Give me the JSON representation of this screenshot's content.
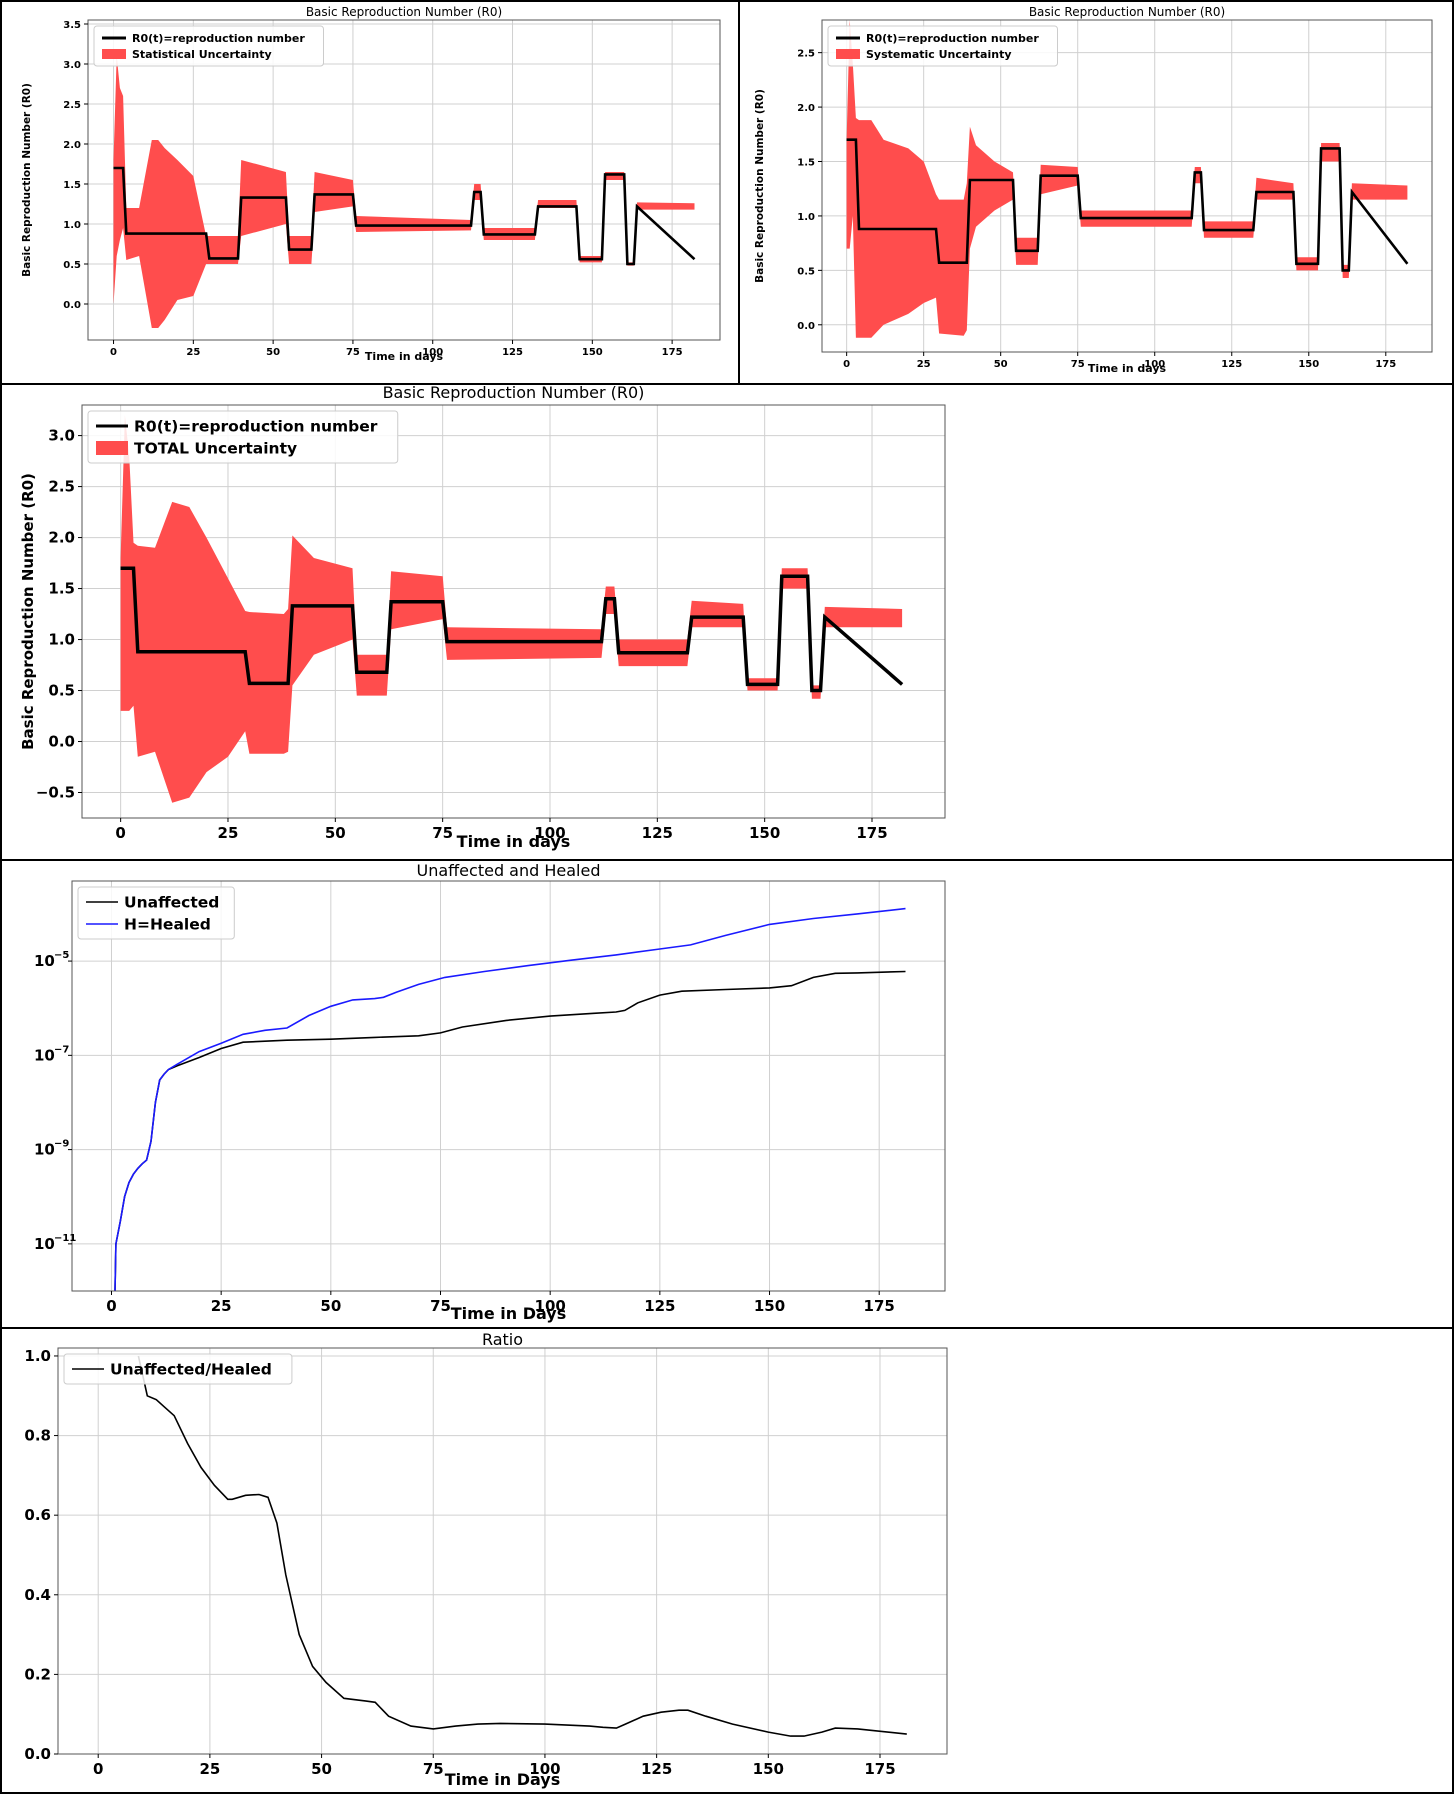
{
  "chart_data": [
    {
      "type": "line",
      "title": "Basic Reproduction Number (R0)",
      "xlabel": "Time in days",
      "ylabel": "Basic Reproduction Number (R0)",
      "xlim": [
        -8,
        190
      ],
      "ylim": [
        -0.45,
        3.55
      ],
      "xticks": [
        0,
        25,
        50,
        75,
        100,
        125,
        150,
        175
      ],
      "xtick_labels": [
        "0",
        "25",
        "50",
        "75",
        "100",
        "125",
        "150",
        "175"
      ],
      "yticks": [
        0.0,
        0.5,
        1.0,
        1.5,
        2.0,
        2.5,
        3.0,
        3.5
      ],
      "ytick_labels": [
        "0.0",
        "0.5",
        "1.0",
        "1.5",
        "2.0",
        "2.5",
        "3.0",
        "3.5"
      ],
      "grid": true,
      "legend_position": "top-left",
      "series": [
        {
          "name": "R0(t)=reproduction number",
          "color": "#000000",
          "x": [
            0,
            3,
            4,
            29,
            30,
            39,
            40,
            54,
            55,
            62,
            63,
            75,
            76,
            112,
            113,
            115,
            116,
            132,
            133,
            145,
            146,
            153,
            154,
            160,
            161,
            163,
            164,
            182
          ],
          "y": [
            1.7,
            1.7,
            0.88,
            0.88,
            0.57,
            0.57,
            1.33,
            1.33,
            0.68,
            0.68,
            1.37,
            1.37,
            0.98,
            0.98,
            1.4,
            1.4,
            0.87,
            0.87,
            1.22,
            1.22,
            0.56,
            0.56,
            1.62,
            1.62,
            0.5,
            0.5,
            1.22,
            0.56
          ]
        }
      ],
      "band": {
        "name": "Statistical Uncertainty",
        "color": "#ff4d4d",
        "x": [
          0,
          1,
          2,
          3,
          4,
          8,
          12,
          14,
          16,
          20,
          25,
          29,
          30,
          39,
          40,
          54,
          55,
          62,
          63,
          75,
          76,
          112,
          113,
          115,
          116,
          132,
          133,
          145,
          146,
          153,
          154,
          160,
          161,
          163,
          164,
          182
        ],
        "upper": [
          1.8,
          3.1,
          2.7,
          2.6,
          1.2,
          1.2,
          2.05,
          2.05,
          1.95,
          1.8,
          1.6,
          0.85,
          0.85,
          0.85,
          1.8,
          1.65,
          0.85,
          0.85,
          1.65,
          1.55,
          1.1,
          1.05,
          1.5,
          1.5,
          0.95,
          0.95,
          1.3,
          1.3,
          0.6,
          0.6,
          1.65,
          1.65,
          0.52,
          0.52,
          1.27,
          1.26
        ],
        "lower": [
          0.0,
          0.6,
          0.8,
          0.95,
          0.55,
          0.6,
          -0.3,
          -0.3,
          -0.2,
          0.05,
          0.1,
          0.5,
          0.5,
          0.5,
          0.85,
          1.0,
          0.5,
          0.5,
          1.15,
          1.22,
          0.9,
          0.92,
          1.3,
          1.3,
          0.8,
          0.8,
          1.2,
          1.2,
          0.52,
          0.52,
          1.55,
          1.55,
          0.48,
          0.48,
          1.18,
          1.18
        ]
      }
    },
    {
      "type": "line",
      "title": "Basic Reproduction Number (R0)",
      "xlabel": "Time in days",
      "ylabel": "Basic Reproduction Number (R0)",
      "xlim": [
        -8,
        190
      ],
      "ylim": [
        -0.25,
        2.8
      ],
      "xticks": [
        0,
        25,
        50,
        75,
        100,
        125,
        150,
        175
      ],
      "xtick_labels": [
        "0",
        "25",
        "50",
        "75",
        "100",
        "125",
        "150",
        "175"
      ],
      "yticks": [
        0.0,
        0.5,
        1.0,
        1.5,
        2.0,
        2.5
      ],
      "ytick_labels": [
        "0.0",
        "0.5",
        "1.0",
        "1.5",
        "2.0",
        "2.5"
      ],
      "grid": true,
      "legend_position": "top-left",
      "series": [
        {
          "name": "R0(t)=reproduction number",
          "color": "#000000",
          "x": [
            0,
            3,
            4,
            29,
            30,
            39,
            40,
            54,
            55,
            62,
            63,
            75,
            76,
            112,
            113,
            115,
            116,
            132,
            133,
            145,
            146,
            153,
            154,
            160,
            161,
            163,
            164,
            182
          ],
          "y": [
            1.7,
            1.7,
            0.88,
            0.88,
            0.57,
            0.57,
            1.33,
            1.33,
            0.68,
            0.68,
            1.37,
            1.37,
            0.98,
            0.98,
            1.4,
            1.4,
            0.87,
            0.87,
            1.22,
            1.22,
            0.56,
            0.56,
            1.62,
            1.62,
            0.5,
            0.5,
            1.22,
            0.56
          ]
        }
      ],
      "band": {
        "name": "Systematic Uncertainty",
        "color": "#ff4d4d",
        "x": [
          0,
          1,
          2,
          3,
          4,
          8,
          12,
          20,
          25,
          29,
          30,
          38,
          39,
          40,
          42,
          48,
          54,
          55,
          62,
          63,
          75,
          76,
          112,
          113,
          115,
          116,
          132,
          133,
          145,
          146,
          153,
          154,
          160,
          161,
          163,
          164,
          182
        ],
        "upper": [
          1.7,
          2.8,
          2.4,
          1.9,
          1.88,
          1.88,
          1.7,
          1.62,
          1.5,
          1.2,
          1.15,
          1.15,
          1.3,
          1.82,
          1.65,
          1.5,
          1.4,
          0.8,
          0.8,
          1.47,
          1.45,
          1.05,
          1.05,
          1.45,
          1.45,
          0.95,
          0.95,
          1.35,
          1.3,
          0.62,
          0.62,
          1.67,
          1.67,
          0.55,
          0.55,
          1.3,
          1.28
        ],
        "lower": [
          0.7,
          0.7,
          1.0,
          -0.12,
          -0.12,
          -0.12,
          0.0,
          0.1,
          0.2,
          0.25,
          -0.08,
          -0.1,
          -0.05,
          0.7,
          0.9,
          1.05,
          1.15,
          0.55,
          0.55,
          1.2,
          1.28,
          0.9,
          0.9,
          1.3,
          1.3,
          0.8,
          0.8,
          1.15,
          1.15,
          0.5,
          0.5,
          1.5,
          1.5,
          0.43,
          0.43,
          1.15,
          1.15
        ]
      }
    },
    {
      "type": "line",
      "title": "Basic Reproduction Number (R0)",
      "xlabel": "Time in days",
      "ylabel": "Basic Reproduction Number (R0)",
      "xlim": [
        -9,
        192
      ],
      "ylim": [
        -0.75,
        3.3
      ],
      "xticks": [
        0,
        25,
        50,
        75,
        100,
        125,
        150,
        175
      ],
      "xtick_labels": [
        "0",
        "25",
        "50",
        "75",
        "100",
        "125",
        "150",
        "175"
      ],
      "yticks": [
        -0.5,
        0.0,
        0.5,
        1.0,
        1.5,
        2.0,
        2.5,
        3.0
      ],
      "ytick_labels": [
        "−0.5",
        "0.0",
        "0.5",
        "1.0",
        "1.5",
        "2.0",
        "2.5",
        "3.0"
      ],
      "grid": true,
      "legend_position": "top-left",
      "series": [
        {
          "name": "R0(t)=reproduction number",
          "color": "#000000",
          "x": [
            0,
            3,
            4,
            29,
            30,
            39,
            40,
            54,
            55,
            62,
            63,
            75,
            76,
            112,
            113,
            115,
            116,
            132,
            133,
            145,
            146,
            153,
            154,
            160,
            161,
            163,
            164,
            182
          ],
          "y": [
            1.7,
            1.7,
            0.88,
            0.88,
            0.57,
            0.57,
            1.33,
            1.33,
            0.68,
            0.68,
            1.37,
            1.37,
            0.98,
            0.98,
            1.4,
            1.4,
            0.87,
            0.87,
            1.22,
            1.22,
            0.56,
            0.56,
            1.62,
            1.62,
            0.5,
            0.5,
            1.22,
            0.56
          ]
        }
      ],
      "band": {
        "name": "TOTAL Uncertainty",
        "color": "#ff4d4d",
        "x": [
          0,
          1,
          2,
          3,
          4,
          8,
          12,
          16,
          20,
          25,
          29,
          30,
          38,
          39,
          40,
          45,
          54,
          55,
          62,
          63,
          75,
          76,
          112,
          113,
          115,
          116,
          132,
          133,
          145,
          146,
          153,
          154,
          160,
          161,
          163,
          164,
          182
        ],
        "upper": [
          1.8,
          3.2,
          2.8,
          1.95,
          1.92,
          1.9,
          2.35,
          2.3,
          2.0,
          1.6,
          1.28,
          1.27,
          1.25,
          1.3,
          2.02,
          1.8,
          1.7,
          0.85,
          0.85,
          1.67,
          1.62,
          1.12,
          1.1,
          1.52,
          1.52,
          1.0,
          1.0,
          1.38,
          1.35,
          0.62,
          0.62,
          1.7,
          1.7,
          0.55,
          0.55,
          1.32,
          1.3
        ],
        "lower": [
          0.3,
          0.3,
          0.3,
          0.35,
          -0.15,
          -0.1,
          -0.6,
          -0.55,
          -0.3,
          -0.15,
          0.1,
          -0.12,
          -0.12,
          -0.1,
          0.55,
          0.85,
          1.0,
          0.45,
          0.45,
          1.1,
          1.2,
          0.8,
          0.82,
          1.25,
          1.25,
          0.74,
          0.74,
          1.12,
          1.12,
          0.5,
          0.5,
          1.5,
          1.5,
          0.42,
          0.42,
          1.12,
          1.12
        ]
      }
    },
    {
      "type": "line",
      "title": "Unaffected and Healed",
      "xlabel": "Time in Days",
      "ylabel": "",
      "yscale": "log",
      "xlim": [
        -9,
        190
      ],
      "ylim": [
        1e-12,
        0.0005
      ],
      "xticks": [
        0,
        25,
        50,
        75,
        100,
        125,
        150,
        175
      ],
      "xtick_labels": [
        "0",
        "25",
        "50",
        "75",
        "100",
        "125",
        "150",
        "175"
      ],
      "yticks": [
        1e-11,
        1e-09,
        1e-07,
        1e-05
      ],
      "ytick_labels": [
        "10",
        "10",
        "10",
        "10"
      ],
      "ytick_exponents": [
        "−11",
        "−9",
        "−7",
        "−5"
      ],
      "grid": true,
      "legend_position": "top-left",
      "series": [
        {
          "name": "Unaffected",
          "color": "#000000",
          "x": [
            0.8,
            1,
            2,
            3,
            4,
            5,
            6,
            7,
            8,
            9,
            10,
            11,
            12,
            13,
            15,
            20,
            25,
            30,
            40,
            50,
            60,
            70,
            75,
            80,
            90,
            100,
            110,
            115,
            117,
            120,
            125,
            130,
            140,
            150,
            155,
            160,
            165,
            170,
            181
          ],
          "y": [
            1e-12,
            1e-11,
            3e-11,
            1e-10,
            2e-10,
            3e-10,
            4e-10,
            5e-10,
            6e-10,
            1.5e-09,
            1e-08,
            3e-08,
            4e-08,
            5e-08,
            6e-08,
            9e-08,
            1.4e-07,
            1.9e-07,
            2.1e-07,
            2.2e-07,
            2.4e-07,
            2.6e-07,
            3e-07,
            4e-07,
            5.5e-07,
            6.8e-07,
            7.8e-07,
            8.3e-07,
            9e-07,
            1.3e-06,
            1.9e-06,
            2.3e-06,
            2.5e-06,
            2.7e-06,
            3e-06,
            4.5e-06,
            5.5e-06,
            5.6e-06,
            6e-06
          ]
        },
        {
          "name": "H=Healed",
          "color": "#1a1aff",
          "x": [
            0.8,
            1,
            2,
            3,
            4,
            5,
            6,
            7,
            8,
            9,
            10,
            11,
            12,
            13,
            15,
            20,
            25,
            30,
            35,
            40,
            45,
            50,
            55,
            60,
            62,
            65,
            70,
            76,
            85,
            95,
            105,
            115,
            125,
            132,
            140,
            150,
            160,
            170,
            181
          ],
          "y": [
            1e-12,
            1e-11,
            3e-11,
            1e-10,
            2e-10,
            3e-10,
            4e-10,
            5e-10,
            6e-10,
            1.5e-09,
            1e-08,
            3e-08,
            4e-08,
            5e-08,
            6.5e-08,
            1.2e-07,
            1.8e-07,
            2.8e-07,
            3.4e-07,
            3.8e-07,
            7e-07,
            1.1e-06,
            1.5e-06,
            1.6e-06,
            1.7e-06,
            2.2e-06,
            3.2e-06,
            4.5e-06,
            6e-06,
            8e-06,
            1.05e-05,
            1.35e-05,
            1.8e-05,
            2.2e-05,
            3.5e-05,
            6e-05,
            8e-05,
            0.0001,
            0.00013
          ]
        }
      ]
    },
    {
      "type": "line",
      "title": "Ratio",
      "xlabel": "Time in Days",
      "ylabel": "",
      "xlim": [
        -9,
        190
      ],
      "ylim": [
        0,
        1.02
      ],
      "xticks": [
        0,
        25,
        50,
        75,
        100,
        125,
        150,
        175
      ],
      "xtick_labels": [
        "0",
        "25",
        "50",
        "75",
        "100",
        "125",
        "150",
        "175"
      ],
      "yticks": [
        0.0,
        0.2,
        0.4,
        0.6,
        0.8,
        1.0
      ],
      "ytick_labels": [
        "0.0",
        "0.2",
        "0.4",
        "0.6",
        "0.8",
        "1.0"
      ],
      "grid": true,
      "legend_position": "top-left",
      "series": [
        {
          "name": "Unaffected/Healed",
          "color": "#000000",
          "x": [
            9,
            10,
            11,
            13,
            15,
            17,
            20,
            23,
            26,
            29,
            30,
            33,
            36,
            38,
            40,
            42,
            45,
            48,
            51,
            55,
            60,
            62,
            65,
            70,
            75,
            80,
            85,
            90,
            100,
            110,
            113,
            116,
            118,
            122,
            126,
            130,
            132,
            136,
            142,
            150,
            155,
            158,
            162,
            165,
            170,
            181
          ],
          "y": [
            1.0,
            0.95,
            0.9,
            0.89,
            0.87,
            0.85,
            0.78,
            0.72,
            0.675,
            0.64,
            0.64,
            0.65,
            0.652,
            0.645,
            0.58,
            0.45,
            0.3,
            0.22,
            0.18,
            0.14,
            0.133,
            0.13,
            0.095,
            0.07,
            0.063,
            0.07,
            0.075,
            0.077,
            0.075,
            0.07,
            0.067,
            0.065,
            0.075,
            0.095,
            0.105,
            0.11,
            0.11,
            0.095,
            0.075,
            0.055,
            0.045,
            0.045,
            0.055,
            0.065,
            0.063,
            0.05
          ]
        }
      ]
    }
  ]
}
